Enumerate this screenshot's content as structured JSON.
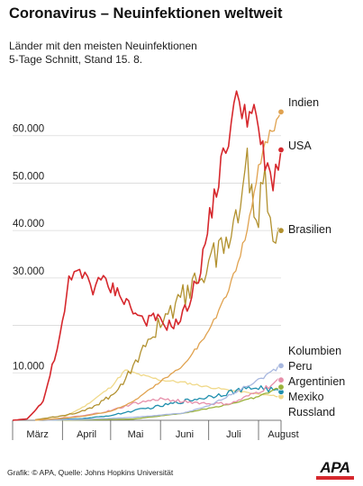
{
  "header": {
    "title": "Coronavirus – Neuinfektionen weltweit",
    "subtitle_line1": "Länder mit den meisten Neuinfektionen",
    "subtitle_line2": "5-Tage Schnitt, Stand 15. 8."
  },
  "footer": {
    "source": "Grafik: © APA, Quelle: Johns Hopkins Universität",
    "logo": "APA"
  },
  "colors": {
    "Indien": "#e0a24f",
    "USA": "#d6282d",
    "Brasilien": "#b2912f",
    "Kolumbien": "#a7b7df",
    "Peru": "#e68faa",
    "Argentinien": "#9ab23a",
    "Mexiko": "#1f8fae",
    "Russland": "#f0d98a",
    "grid": "#d9d9d9",
    "axis": "#7a7a7a",
    "logo_bar": "#d6282d"
  },
  "chart_data": {
    "type": "line",
    "title": "Coronavirus – Neuinfektionen weltweit",
    "subtitle": "Länder mit den meisten Neuinfektionen, 5-Tage Schnitt, Stand 15. 8.",
    "xlabel": "",
    "ylabel": "",
    "x_range": [
      "2020-03-01",
      "2020-08-15"
    ],
    "ylim": [
      0,
      70000
    ],
    "yticks": [
      10000,
      20000,
      30000,
      40000,
      50000,
      60000
    ],
    "ytick_labels": [
      "10.000",
      "",
      "30.000",
      "40.000",
      "50.000",
      "60.000"
    ],
    "xticks": [
      "März",
      "April",
      "Mai",
      "Juni",
      "Juli",
      "August"
    ],
    "grid": true,
    "legend": "end-of-line labels at right",
    "series": [
      {
        "name": "Indien",
        "x": [
          "2020-03-15",
          "2020-04-01",
          "2020-04-15",
          "2020-05-01",
          "2020-05-15",
          "2020-06-01",
          "2020-06-15",
          "2020-07-01",
          "2020-07-15",
          "2020-07-25",
          "2020-08-01",
          "2020-08-08",
          "2020-08-15"
        ],
        "y": [
          50,
          400,
          900,
          1900,
          3900,
          8200,
          11500,
          18500,
          29000,
          40000,
          53500,
          60500,
          65000
        ]
      },
      {
        "name": "USA",
        "x": [
          "2020-03-01",
          "2020-03-10",
          "2020-03-20",
          "2020-03-27",
          "2020-04-01",
          "2020-04-05",
          "2020-04-10",
          "2020-04-15",
          "2020-04-20",
          "2020-04-25",
          "2020-05-01",
          "2020-05-08",
          "2020-05-15",
          "2020-05-22",
          "2020-05-29",
          "2020-06-05",
          "2020-06-12",
          "2020-06-19",
          "2020-06-26",
          "2020-07-03",
          "2020-07-10",
          "2020-07-15",
          "2020-07-20",
          "2020-07-25",
          "2020-08-01",
          "2020-08-05",
          "2020-08-10",
          "2020-08-15"
        ],
        "y": [
          0,
          300,
          4000,
          13000,
          20000,
          29000,
          31000,
          31000,
          28000,
          29500,
          28000,
          26500,
          23000,
          21000,
          21500,
          20000,
          20500,
          25000,
          32000,
          45000,
          55000,
          63000,
          68000,
          65000,
          62000,
          53000,
          51000,
          57000
        ]
      },
      {
        "name": "Brasilien",
        "x": [
          "2020-03-15",
          "2020-04-01",
          "2020-04-15",
          "2020-05-01",
          "2020-05-15",
          "2020-06-01",
          "2020-06-15",
          "2020-07-01",
          "2020-07-15",
          "2020-07-25",
          "2020-08-01",
          "2020-08-05",
          "2020-08-10",
          "2020-08-15"
        ],
        "y": [
          100,
          1000,
          2000,
          5000,
          11000,
          21000,
          26000,
          33000,
          39000,
          53000,
          44000,
          50000,
          41000,
          40000
        ]
      },
      {
        "name": "Kolumbien",
        "x": [
          "2020-03-20",
          "2020-04-15",
          "2020-05-15",
          "2020-06-15",
          "2020-07-01",
          "2020-07-15",
          "2020-08-01",
          "2020-08-15"
        ],
        "y": [
          0,
          200,
          600,
          1500,
          3000,
          5500,
          8500,
          11500
        ]
      },
      {
        "name": "Peru",
        "x": [
          "2020-03-20",
          "2020-04-15",
          "2020-05-01",
          "2020-05-15",
          "2020-06-01",
          "2020-06-15",
          "2020-07-01",
          "2020-07-15",
          "2020-08-01",
          "2020-08-15"
        ],
        "y": [
          0,
          1000,
          2000,
          3500,
          4500,
          4000,
          3500,
          3500,
          6000,
          8500
        ]
      },
      {
        "name": "Argentinien",
        "x": [
          "2020-03-20",
          "2020-04-15",
          "2020-05-15",
          "2020-06-15",
          "2020-07-01",
          "2020-07-15",
          "2020-08-01",
          "2020-08-15"
        ],
        "y": [
          0,
          100,
          250,
          1500,
          2500,
          3500,
          5000,
          7000
        ]
      },
      {
        "name": "Mexiko",
        "x": [
          "2020-03-20",
          "2020-04-15",
          "2020-05-01",
          "2020-05-15",
          "2020-06-01",
          "2020-06-15",
          "2020-07-01",
          "2020-07-15",
          "2020-08-01",
          "2020-08-15"
        ],
        "y": [
          0,
          400,
          1000,
          2000,
          3000,
          4000,
          5000,
          6000,
          7000,
          6000
        ]
      },
      {
        "name": "Russland",
        "x": [
          "2020-03-15",
          "2020-04-01",
          "2020-04-15",
          "2020-05-01",
          "2020-05-10",
          "2020-05-20",
          "2020-06-01",
          "2020-06-15",
          "2020-07-01",
          "2020-07-15",
          "2020-08-01",
          "2020-08-15"
        ],
        "y": [
          0,
          500,
          3000,
          7000,
          10500,
          9500,
          8500,
          8000,
          7000,
          6300,
          5500,
          5000
        ]
      }
    ]
  }
}
